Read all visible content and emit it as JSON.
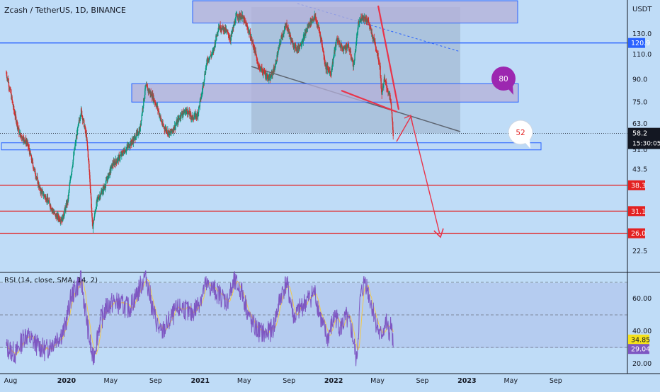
{
  "chart_data": [
    {
      "type": "candlestick",
      "title": "Zcash / TetherUS, 1D, BINANCE",
      "currency": "USDT",
      "x_ticks": [
        "Aug",
        "2020",
        "May",
        "Sep",
        "2021",
        "May",
        "Sep",
        "2022",
        "May",
        "Sep",
        "2023",
        "May",
        "Sep"
      ],
      "y_ticks": [
        130.0,
        110.0,
        90.0,
        75.0,
        63.0,
        51.0,
        43.5,
        22.5
      ],
      "ylim": [
        18,
        150
      ],
      "log_scale": true,
      "current_price": {
        "value": 58.2,
        "countdown": "15:30:05"
      },
      "levels": [
        {
          "label": "120.9",
          "value": 120.9,
          "color": "#2962ff"
        },
        {
          "label": "38.3",
          "value": 38.3,
          "color": "#e32121"
        },
        {
          "label": "31.1",
          "value": 31.1,
          "color": "#e32121"
        },
        {
          "label": "26.0",
          "value": 26.0,
          "color": "#e32121"
        }
      ],
      "zones": [
        {
          "low": 142,
          "high": 170
        },
        {
          "low": 75,
          "high": 87
        },
        {
          "low": 51,
          "high": 54
        }
      ],
      "bubbles": [
        {
          "text": "80",
          "color": "#9c27b0",
          "text_color": "#ffffff"
        },
        {
          "text": "52",
          "color": "#ffffff",
          "text_color": "#e32121"
        }
      ],
      "price_path": [
        [
          "2019-07-20",
          95
        ],
        [
          "2019-08-10",
          70
        ],
        [
          "2019-08-25",
          58
        ],
        [
          "2019-09-15",
          54
        ],
        [
          "2019-10-01",
          45
        ],
        [
          "2019-10-20",
          37
        ],
        [
          "2019-11-10",
          34
        ],
        [
          "2019-12-01",
          30
        ],
        [
          "2019-12-20",
          29
        ],
        [
          "2020-01-05",
          34
        ],
        [
          "2020-01-20",
          48
        ],
        [
          "2020-02-10",
          70
        ],
        [
          "2020-02-25",
          56
        ],
        [
          "2020-03-12",
          27
        ],
        [
          "2020-03-25",
          34
        ],
        [
          "2020-04-15",
          38
        ],
        [
          "2020-05-05",
          45
        ],
        [
          "2020-05-25",
          48
        ],
        [
          "2020-06-15",
          52
        ],
        [
          "2020-07-01",
          55
        ],
        [
          "2020-07-20",
          60
        ],
        [
          "2020-08-05",
          85
        ],
        [
          "2020-08-25",
          78
        ],
        [
          "2020-09-05",
          72
        ],
        [
          "2020-09-20",
          62
        ],
        [
          "2020-10-10",
          58
        ],
        [
          "2020-10-25",
          62
        ],
        [
          "2020-11-10",
          68
        ],
        [
          "2020-11-25",
          70
        ],
        [
          "2020-12-10",
          66
        ],
        [
          "2020-12-25",
          68
        ],
        [
          "2021-01-05",
          80
        ],
        [
          "2021-01-20",
          105
        ],
        [
          "2021-02-05",
          112
        ],
        [
          "2021-02-20",
          138
        ],
        [
          "2021-03-10",
          135
        ],
        [
          "2021-03-25",
          125
        ],
        [
          "2021-04-10",
          150
        ],
        [
          "2021-04-25",
          150
        ],
        [
          "2021-05-12",
          135
        ],
        [
          "2021-05-25",
          120
        ],
        [
          "2021-06-10",
          100
        ],
        [
          "2021-06-25",
          95
        ],
        [
          "2021-07-10",
          90
        ],
        [
          "2021-07-25",
          100
        ],
        [
          "2021-08-10",
          125
        ],
        [
          "2021-08-25",
          140
        ],
        [
          "2021-09-10",
          120
        ],
        [
          "2021-09-25",
          115
        ],
        [
          "2021-10-10",
          125
        ],
        [
          "2021-10-25",
          140
        ],
        [
          "2021-11-10",
          150
        ],
        [
          "2021-11-25",
          130
        ],
        [
          "2021-12-10",
          100
        ],
        [
          "2021-12-25",
          95
        ],
        [
          "2022-01-10",
          125
        ],
        [
          "2022-01-25",
          115
        ],
        [
          "2022-02-10",
          118
        ],
        [
          "2022-02-25",
          100
        ],
        [
          "2022-03-10",
          140
        ],
        [
          "2022-03-20",
          150
        ],
        [
          "2022-04-05",
          145
        ],
        [
          "2022-04-15",
          130
        ],
        [
          "2022-04-25",
          120
        ],
        [
          "2022-05-08",
          100
        ],
        [
          "2022-05-12",
          80
        ],
        [
          "2022-05-20",
          90
        ],
        [
          "2022-05-30",
          82
        ],
        [
          "2022-06-06",
          76
        ],
        [
          "2022-06-13",
          58.2
        ]
      ]
    },
    {
      "type": "line",
      "title": "RSI (14, close, SMA, 14, 2)",
      "y_ticks": [
        60.0,
        40.0,
        20.0
      ],
      "ylim": [
        15,
        78
      ],
      "levels": [
        70,
        50,
        30
      ],
      "current_values": [
        {
          "label": "34.85",
          "color": "#f5e11b",
          "text_color": "#131722"
        },
        {
          "label": "29.04",
          "color": "#7e57c2",
          "text_color": "#ffffff"
        }
      ],
      "rsi_path": [
        [
          "2019-07-20",
          30
        ],
        [
          "2019-08-15",
          26
        ],
        [
          "2019-09-10",
          38
        ],
        [
          "2019-10-10",
          32
        ],
        [
          "2019-11-05",
          28
        ],
        [
          "2019-12-01",
          35
        ],
        [
          "2019-12-25",
          40
        ],
        [
          "2020-01-15",
          62
        ],
        [
          "2020-02-10",
          72
        ],
        [
          "2020-02-28",
          42
        ],
        [
          "2020-03-13",
          22
        ],
        [
          "2020-04-01",
          45
        ],
        [
          "2020-04-20",
          55
        ],
        [
          "2020-05-10",
          58
        ],
        [
          "2020-06-01",
          56
        ],
        [
          "2020-06-20",
          54
        ],
        [
          "2020-07-10",
          62
        ],
        [
          "2020-08-05",
          75
        ],
        [
          "2020-08-25",
          52
        ],
        [
          "2020-09-15",
          38
        ],
        [
          "2020-10-05",
          45
        ],
        [
          "2020-10-25",
          52
        ],
        [
          "2020-11-15",
          55
        ],
        [
          "2020-12-05",
          50
        ],
        [
          "2020-12-25",
          56
        ],
        [
          "2021-01-15",
          68
        ],
        [
          "2021-02-05",
          66
        ],
        [
          "2021-02-25",
          62
        ],
        [
          "2021-03-15",
          58
        ],
        [
          "2021-04-05",
          70
        ],
        [
          "2021-04-25",
          64
        ],
        [
          "2021-05-20",
          45
        ],
        [
          "2021-06-10",
          40
        ],
        [
          "2021-06-30",
          38
        ],
        [
          "2021-07-20",
          42
        ],
        [
          "2021-08-10",
          62
        ],
        [
          "2021-08-25",
          70
        ],
        [
          "2021-09-15",
          48
        ],
        [
          "2021-10-05",
          55
        ],
        [
          "2021-10-25",
          60
        ],
        [
          "2021-11-10",
          64
        ],
        [
          "2021-11-30",
          45
        ],
        [
          "2021-12-15",
          35
        ],
        [
          "2022-01-05",
          50
        ],
        [
          "2022-01-20",
          42
        ],
        [
          "2022-02-05",
          48
        ],
        [
          "2022-02-20",
          40
        ],
        [
          "2022-03-05",
          21
        ],
        [
          "2022-03-15",
          60
        ],
        [
          "2022-03-28",
          72
        ],
        [
          "2022-04-10",
          60
        ],
        [
          "2022-04-25",
          48
        ],
        [
          "2022-05-08",
          36
        ],
        [
          "2022-05-15",
          40
        ],
        [
          "2022-05-25",
          45
        ],
        [
          "2022-06-01",
          38
        ],
        [
          "2022-06-08",
          44
        ],
        [
          "2022-06-13",
          29.04
        ]
      ]
    }
  ]
}
